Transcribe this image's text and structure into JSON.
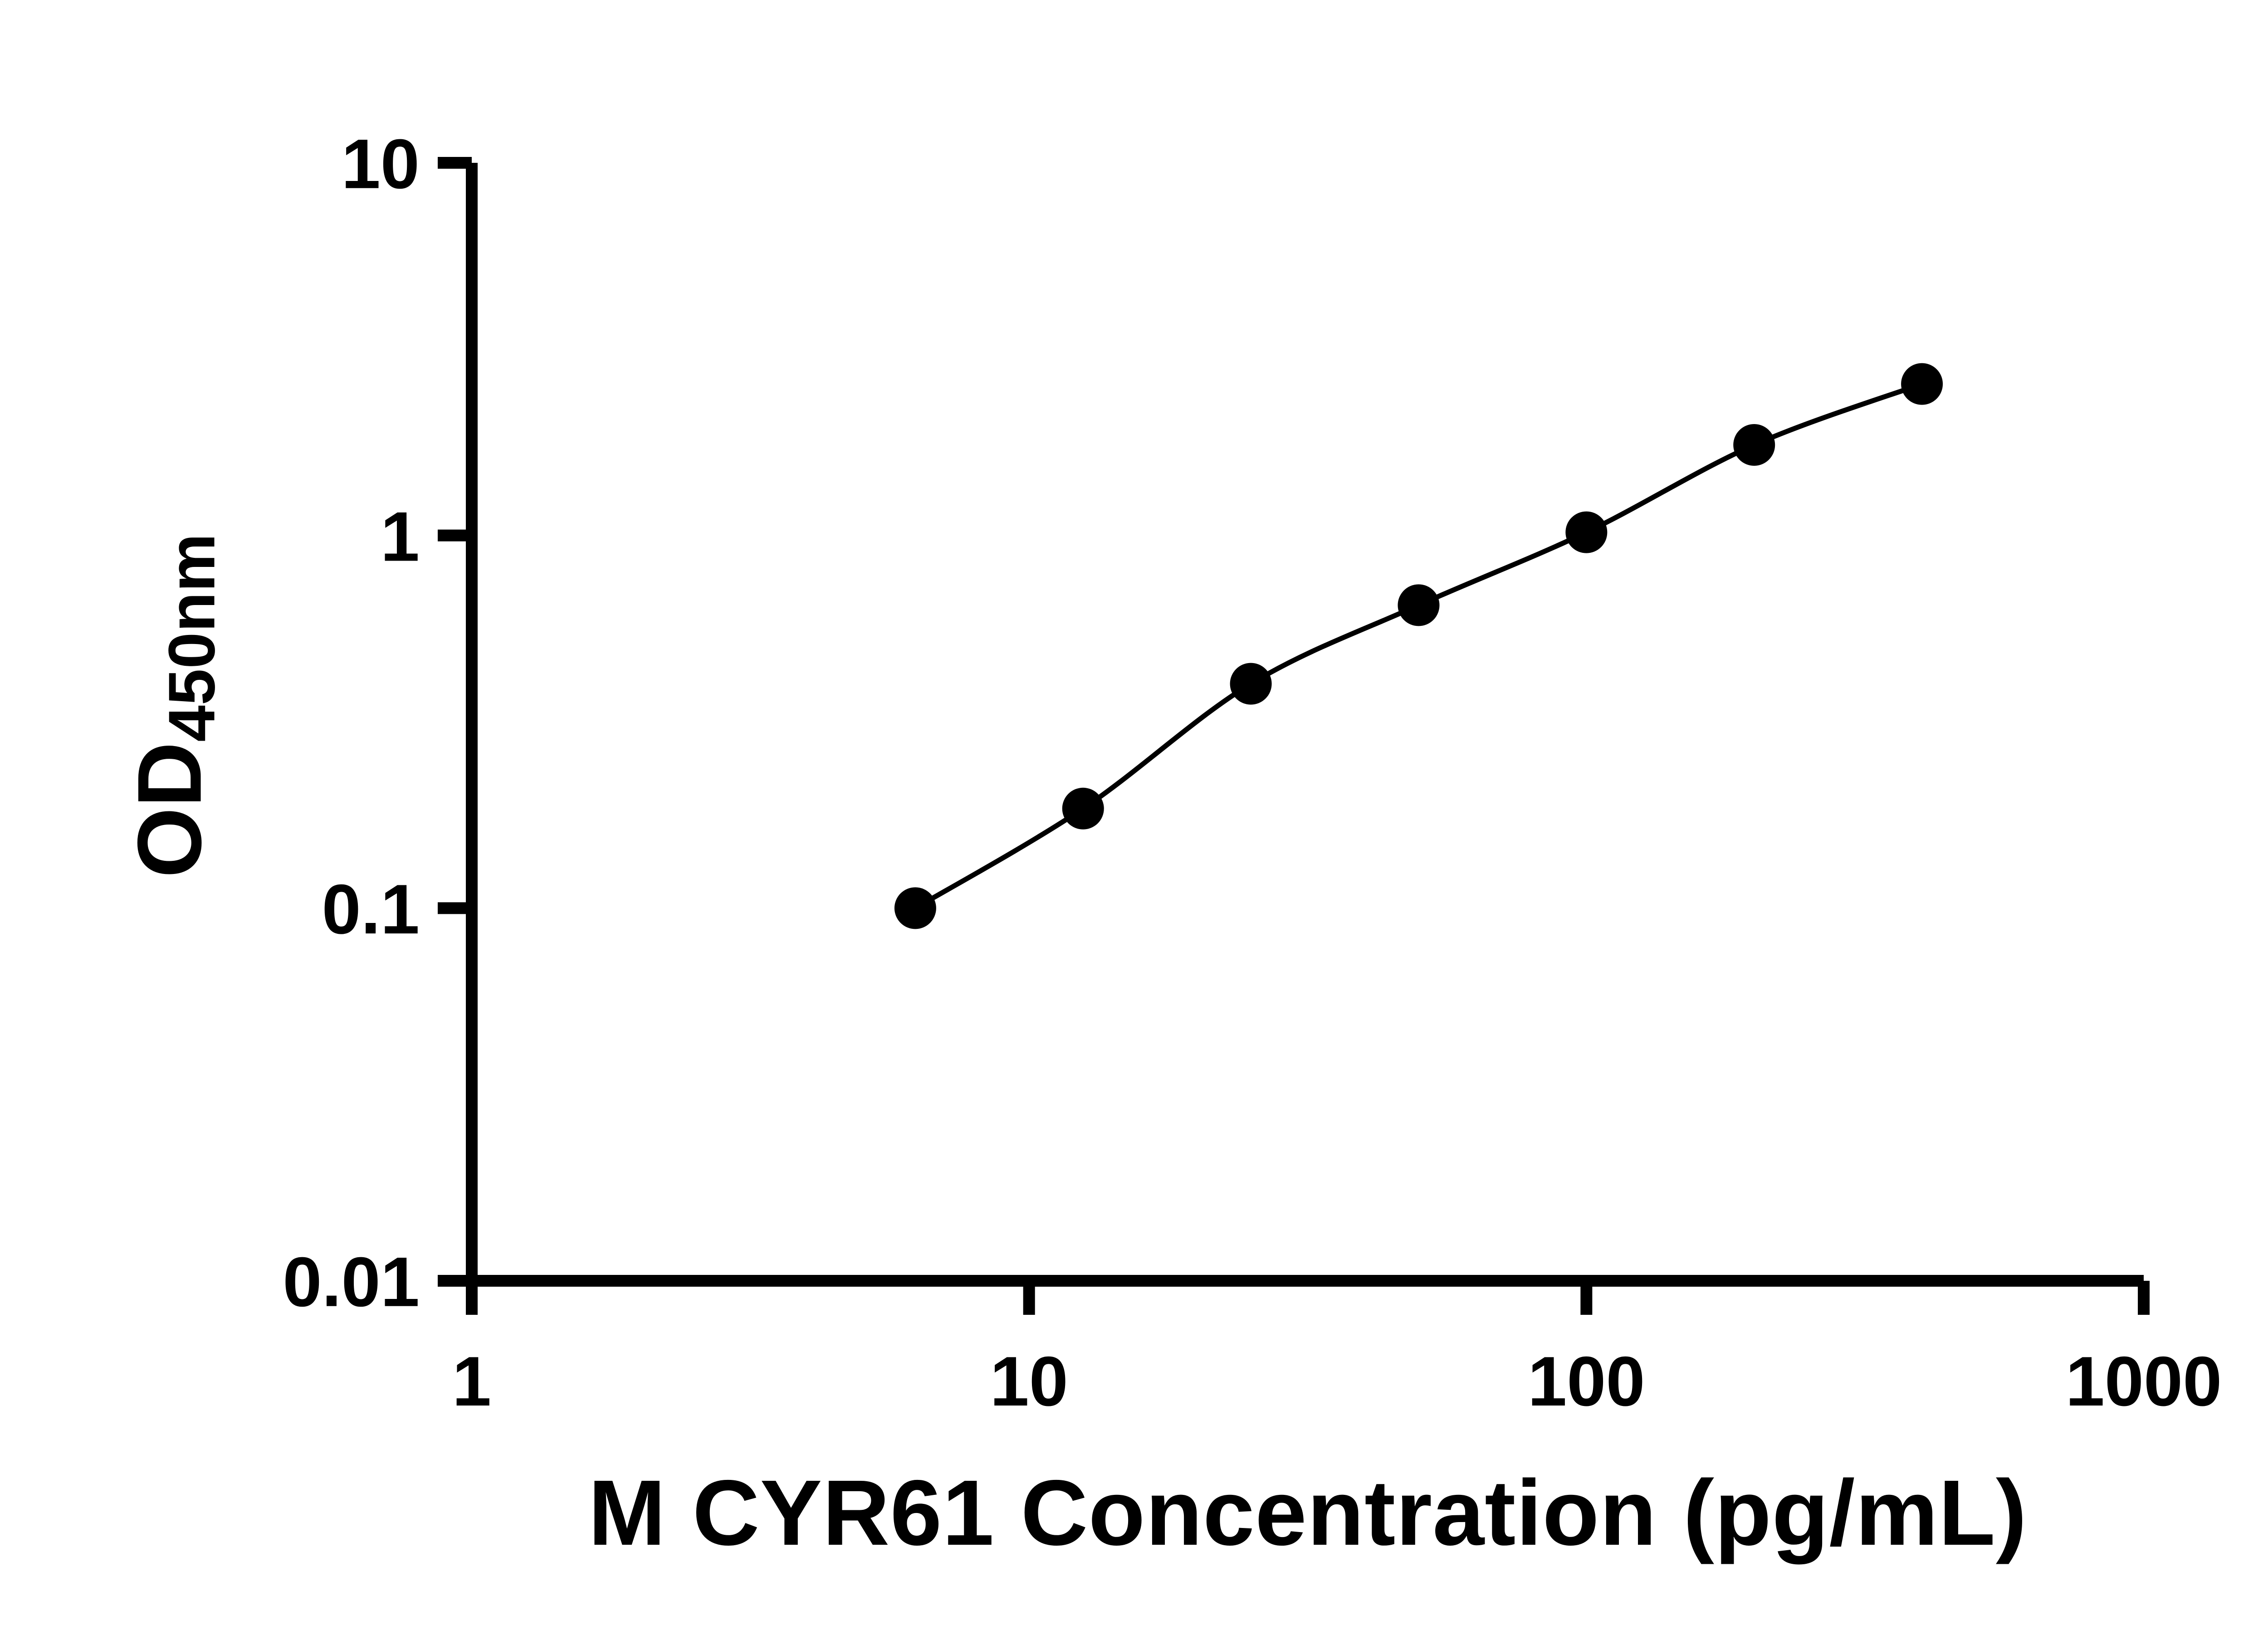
{
  "chart_data": {
    "type": "scatter",
    "title": "",
    "xlabel": "M CYR61 Concentration (pg/mL)",
    "ylabel_main": "OD",
    "ylabel_sub": "450nm",
    "xscale": "log",
    "yscale": "log",
    "xlim": [
      1,
      1000
    ],
    "ylim": [
      0.01,
      10
    ],
    "x_ticks": [
      1,
      10,
      100,
      1000
    ],
    "x_tick_labels": [
      "1",
      "10",
      "100",
      "1000"
    ],
    "y_ticks": [
      0.01,
      0.1,
      1,
      10
    ],
    "y_tick_labels": [
      "0.01",
      "0.1",
      "1",
      "10"
    ],
    "x": [
      6.25,
      12.5,
      25,
      50,
      100,
      200,
      400
    ],
    "y": [
      0.1,
      0.185,
      0.4,
      0.65,
      1.02,
      1.75,
      2.55
    ],
    "has_fit_line": true,
    "grid": false,
    "legend": false,
    "marker_color": "#000000",
    "line_color": "#000000",
    "axis_color": "#000000",
    "background": "#ffffff"
  }
}
